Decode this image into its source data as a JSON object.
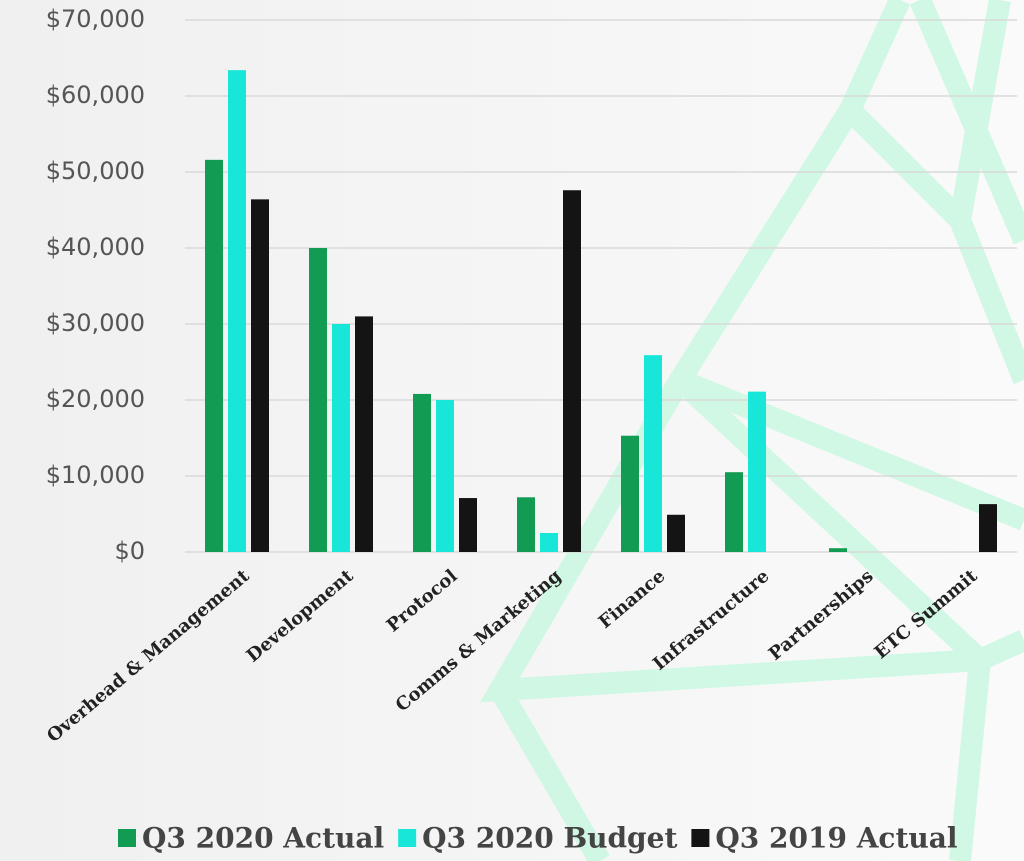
{
  "chart_data": {
    "type": "bar",
    "categories": [
      "Overhead & Management",
      "Development",
      "Protocol",
      "Comms & Marketing",
      "Finance",
      "Infrastructure",
      "Partnerships",
      "ETC Summit"
    ],
    "series": [
      {
        "name": "Q3 2020 Actual",
        "color": "#129b52",
        "values": [
          51600,
          40000,
          20800,
          7200,
          15300,
          10500,
          500,
          null
        ]
      },
      {
        "name": "Q3 2020 Budget",
        "color": "#18e6d8",
        "values": [
          63400,
          30000,
          20000,
          2500,
          25900,
          21100,
          null,
          null
        ]
      },
      {
        "name": "Q3 2019 Actual",
        "color": "#141414",
        "values": [
          46400,
          31000,
          7100,
          47600,
          4900,
          null,
          null,
          6300
        ]
      }
    ],
    "ylim": [
      0,
      70000
    ],
    "yticks": [
      {
        "value": 0,
        "label": "$0"
      },
      {
        "value": 10000,
        "label": "$10,000"
      },
      {
        "value": 20000,
        "label": "$20,000"
      },
      {
        "value": 30000,
        "label": "$30,000"
      },
      {
        "value": 40000,
        "label": "$40,000"
      },
      {
        "value": 50000,
        "label": "$50,000"
      },
      {
        "value": 60000,
        "label": "$60,000"
      },
      {
        "value": 70000,
        "label": "$70,000"
      }
    ],
    "grid": true
  }
}
